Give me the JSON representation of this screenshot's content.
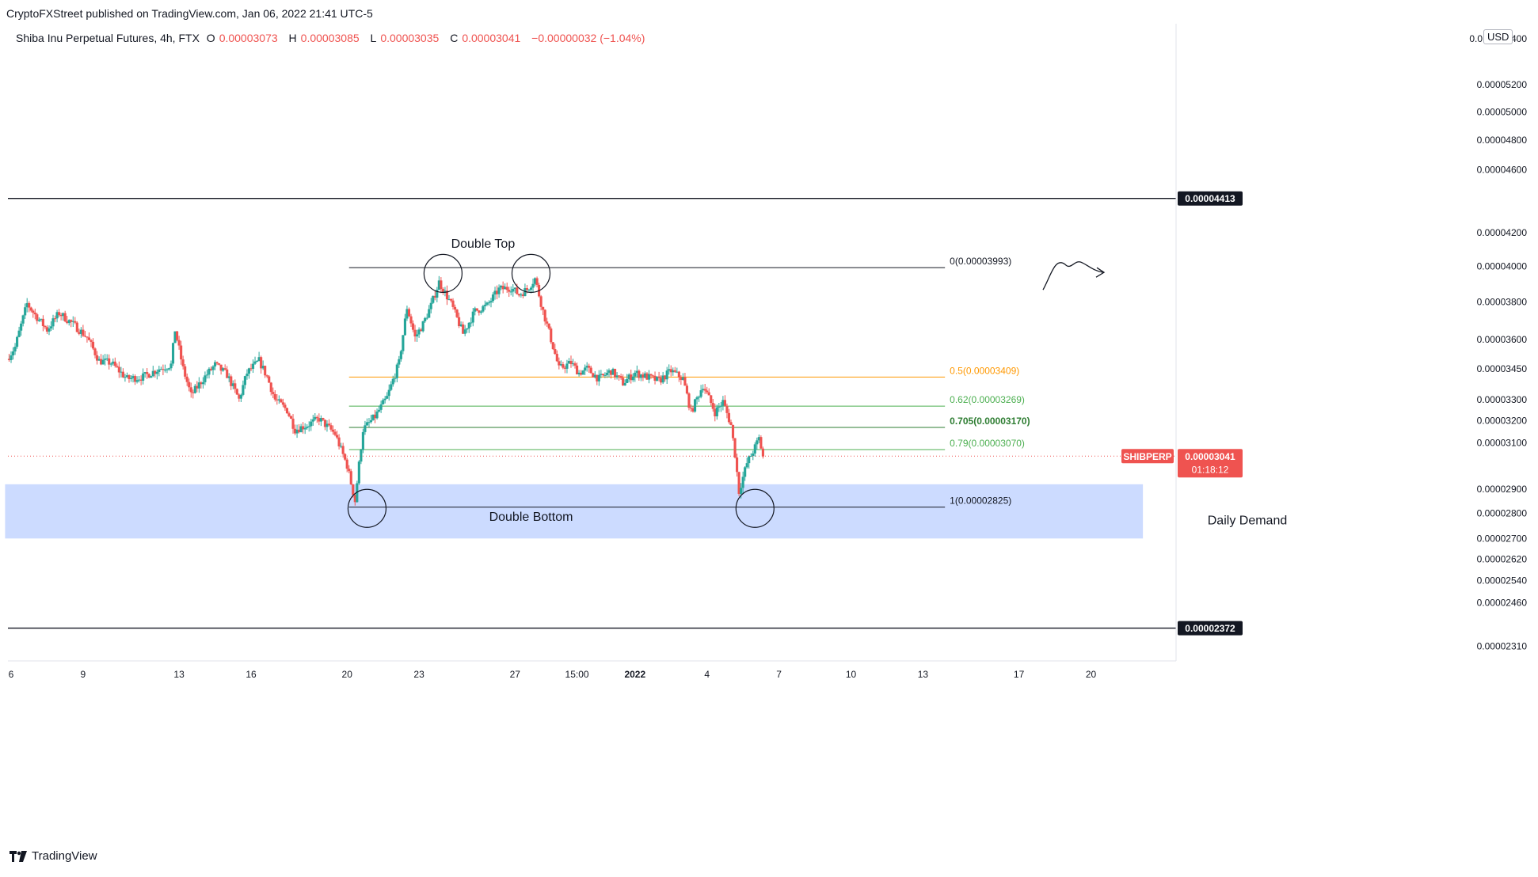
{
  "header": {
    "publish_line": "CryptoFXStreet published on TradingView.com, Jan 06, 2022 21:41 UTC-5",
    "symbol": "Shiba Inu Perpetual Futures, 4h, FTX",
    "ohlc": [
      {
        "label": "O",
        "value": "0.00003073"
      },
      {
        "label": "H",
        "value": "0.00003085"
      },
      {
        "label": "L",
        "value": "0.00003035"
      },
      {
        "label": "C",
        "value": "0.00003041"
      }
    ],
    "change": "−0.00000032 (−1.04%)",
    "currency": "USD"
  },
  "footer": {
    "brand": "TradingView"
  },
  "colors": {
    "up": "#26a69a",
    "down": "#ef5350",
    "fib_half": "#ff9800",
    "fib_green": "#4caf50",
    "demand_zone": "#c9d9ff",
    "badge_bg": "#131722",
    "price_badge": "#ef5350"
  },
  "chart_data": {
    "type": "candlestick",
    "y_scale": "log",
    "ylim": [
      2.27e-05,
      5.68e-05
    ],
    "x_ticks": [
      {
        "label": "6",
        "x": 0
      },
      {
        "label": "9",
        "x": 18
      },
      {
        "label": "13",
        "x": 42
      },
      {
        "label": "16",
        "x": 60
      },
      {
        "label": "20",
        "x": 84
      },
      {
        "label": "23",
        "x": 102
      },
      {
        "label": "27",
        "x": 126
      },
      {
        "label": "15:00",
        "x": 141.5
      },
      {
        "label": "2022",
        "x": 156
      },
      {
        "label": "4",
        "x": 174
      },
      {
        "label": "7",
        "x": 192
      },
      {
        "label": "10",
        "x": 210
      },
      {
        "label": "13",
        "x": 228
      },
      {
        "label": "17",
        "x": 252
      },
      {
        "label": "20",
        "x": 270
      }
    ],
    "y_ticks": [
      "0.00005200",
      "0.00005000",
      "0.00004800",
      "0.00004600",
      "0.00004200",
      "0.00004000",
      "0.00003800",
      "0.00003600",
      "0.00003450",
      "0.00003300",
      "0.00003200",
      "0.00003100",
      "0.00002900",
      "0.00002800",
      "0.00002700",
      "0.00002620",
      "0.00002540",
      "0.00002460",
      "0.00002310"
    ],
    "y_top_partial": "0.0",
    "y_top_partial_suffix": "400",
    "horizontal_levels": [
      {
        "value": 4.413e-05,
        "label": "0.00004413"
      },
      {
        "value": 2.372e-05,
        "label": "0.00002372"
      }
    ],
    "fib": {
      "x_start": 84.5,
      "x_end": 233.5,
      "levels": [
        {
          "ratio": "0",
          "value": 3.993e-05,
          "label": "0(0.00003993)",
          "color": "#131722"
        },
        {
          "ratio": "0.5",
          "value": 3.409e-05,
          "label": "0.5(0.00003409)",
          "color": "#ff9800"
        },
        {
          "ratio": "0.62",
          "value": 3.269e-05,
          "label": "0.62(0.00003269)",
          "color": "#4caf50"
        },
        {
          "ratio": "0.705",
          "value": 3.17e-05,
          "label": "0.705(0.00003170)",
          "color": "#2e7d32"
        },
        {
          "ratio": "0.79",
          "value": 3.07e-05,
          "label": "0.79(0.00003070)",
          "color": "#4caf50"
        },
        {
          "ratio": "1",
          "value": 2.825e-05,
          "label": "1(0.00002825)",
          "color": "#131722"
        }
      ]
    },
    "demand_zone": {
      "x_start": -1.5,
      "x_end": 283,
      "top": 2.92e-05,
      "bottom": 2.7e-05,
      "label": "Daily Demand"
    },
    "annotations": [
      {
        "text": "Double Top",
        "x": 118,
        "y": 4.11e-05
      },
      {
        "text": "Double Bottom",
        "x": 130,
        "y": 2.77e-05
      }
    ],
    "circles": [
      {
        "x": 108,
        "y": 3.96e-05
      },
      {
        "x": 130,
        "y": 3.96e-05
      },
      {
        "x": 89,
        "y": 2.82e-05
      },
      {
        "x": 186,
        "y": 2.82e-05
      }
    ],
    "last_price": {
      "symbol": "SHIBPERP",
      "value": 3.041e-05,
      "label": "0.00003041",
      "countdown": "01:18:12"
    },
    "candle_anchors": [
      [
        -1,
        3.5e-05
      ],
      [
        1,
        3.56e-05
      ],
      [
        4,
        3.79e-05
      ],
      [
        6,
        3.73e-05
      ],
      [
        9,
        3.65e-05
      ],
      [
        12,
        3.74e-05
      ],
      [
        16,
        3.67e-05
      ],
      [
        19,
        3.61e-05
      ],
      [
        22,
        3.49e-05
      ],
      [
        25,
        3.48e-05
      ],
      [
        29,
        3.4e-05
      ],
      [
        33,
        3.41e-05
      ],
      [
        37,
        3.45e-05
      ],
      [
        40,
        3.47e-05
      ],
      [
        41,
        3.65e-05
      ],
      [
        43,
        3.45e-05
      ],
      [
        45,
        3.32e-05
      ],
      [
        48,
        3.4e-05
      ],
      [
        51,
        3.47e-05
      ],
      [
        54,
        3.42e-05
      ],
      [
        57,
        3.3e-05
      ],
      [
        59,
        3.43e-05
      ],
      [
        62,
        3.49e-05
      ],
      [
        64,
        3.41e-05
      ],
      [
        66,
        3.3e-05
      ],
      [
        69,
        3.25e-05
      ],
      [
        71,
        3.16e-05
      ],
      [
        74,
        3.18e-05
      ],
      [
        77,
        3.21e-05
      ],
      [
        81,
        3.14e-05
      ],
      [
        84,
        3e-05
      ],
      [
        86,
        2.85e-05
      ],
      [
        88,
        3.16e-05
      ],
      [
        91,
        3.22e-05
      ],
      [
        94,
        3.31e-05
      ],
      [
        97,
        3.48e-05
      ],
      [
        99,
        3.77e-05
      ],
      [
        101,
        3.61e-05
      ],
      [
        103,
        3.68e-05
      ],
      [
        105,
        3.78e-05
      ],
      [
        107,
        3.91e-05
      ],
      [
        110,
        3.79e-05
      ],
      [
        113,
        3.63e-05
      ],
      [
        116,
        3.75e-05
      ],
      [
        119,
        3.78e-05
      ],
      [
        122,
        3.87e-05
      ],
      [
        125,
        3.88e-05
      ],
      [
        127,
        3.84e-05
      ],
      [
        129,
        3.87e-05
      ],
      [
        131,
        3.93e-05
      ],
      [
        133,
        3.75e-05
      ],
      [
        135,
        3.6e-05
      ],
      [
        137,
        3.45e-05
      ],
      [
        140,
        3.48e-05
      ],
      [
        142,
        3.43e-05
      ],
      [
        144,
        3.45e-05
      ],
      [
        147,
        3.4e-05
      ],
      [
        150,
        3.44e-05
      ],
      [
        153,
        3.38e-05
      ],
      [
        156,
        3.43e-05
      ],
      [
        159,
        3.41e-05
      ],
      [
        162,
        3.39e-05
      ],
      [
        165,
        3.44e-05
      ],
      [
        168,
        3.4e-05
      ],
      [
        170,
        3.24e-05
      ],
      [
        173,
        3.37e-05
      ],
      [
        176,
        3.24e-05
      ],
      [
        178,
        3.29e-05
      ],
      [
        180,
        3.18e-05
      ],
      [
        181,
        3.05e-05
      ],
      [
        182,
        2.89e-05
      ],
      [
        184,
        3.01e-05
      ],
      [
        186,
        3.08e-05
      ],
      [
        187,
        3.12e-05
      ],
      [
        188,
        3.04e-05
      ]
    ]
  }
}
